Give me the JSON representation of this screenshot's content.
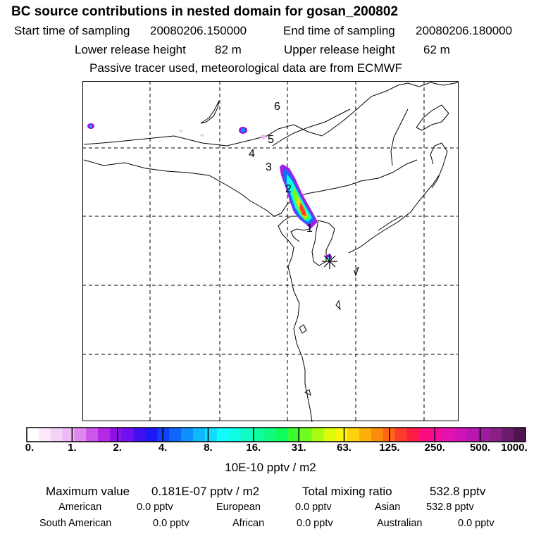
{
  "header": {
    "title": "BC  source contributions in nested domain for gosan_200802",
    "start_label": "Start time of sampling",
    "start_value": "20080206.150000",
    "end_label": "End time of sampling",
    "end_value": "20080206.180000",
    "lower_label": "Lower release height",
    "lower_value": "82 m",
    "upper_label": "Upper release height",
    "upper_value": "62 m",
    "subtitle": "Passive tracer used, meteorological data are from ECMWF"
  },
  "map": {
    "day_labels": [
      "1",
      "2",
      "3",
      "4",
      "5",
      "6"
    ],
    "receptor_symbol": "✳"
  },
  "colorbar": {
    "tick_labels": [
      "0.",
      "1.",
      "2.",
      "4.",
      "8.",
      "16.",
      "31.",
      "63.",
      "125.",
      "250.",
      "500.",
      "1000."
    ],
    "colors": [
      "#ffffff",
      "#fbe9fb",
      "#f5d2f7",
      "#eeb9f4",
      "#dd88ee",
      "#cc55ea",
      "#b528e6",
      "#9010e8",
      "#7010f0",
      "#4010f0",
      "#2018f4",
      "#1040fa",
      "#1066fc",
      "#1090fc",
      "#10b8fc",
      "#10dcfc",
      "#10fcfa",
      "#10fce4",
      "#10fcc4",
      "#10fca0",
      "#10fc80",
      "#10fc5c",
      "#38fc30",
      "#70fc20",
      "#a8fc14",
      "#dcfc0c",
      "#fcf40c",
      "#fcd20c",
      "#fcae0c",
      "#fc8a0c",
      "#fc6614",
      "#fc3c2c",
      "#fc1c44",
      "#fc0c7c",
      "#f40c9c",
      "#e410b0",
      "#d014b8",
      "#b818b0",
      "#a01c9e",
      "#882088",
      "#6c1c6c",
      "#501450"
    ],
    "units": "10E-10 pptv / m2"
  },
  "stats": {
    "max_label": "Maximum value",
    "max_value": "0.181E-07 pptv / m2",
    "total_label": "Total mixing ratio",
    "total_value": "532.8 pptv",
    "american_label": "American",
    "american_value": "0.0 pptv",
    "european_label": "European",
    "european_value": "0.0 pptv",
    "asian_label": "Asian",
    "asian_value": "532.8 pptv",
    "south_american_label": "South American",
    "south_american_value": "0.0 pptv",
    "african_label": "African",
    "african_value": "0.0 pptv",
    "australian_label": "Australian",
    "australian_value": "0.0 pptv"
  }
}
